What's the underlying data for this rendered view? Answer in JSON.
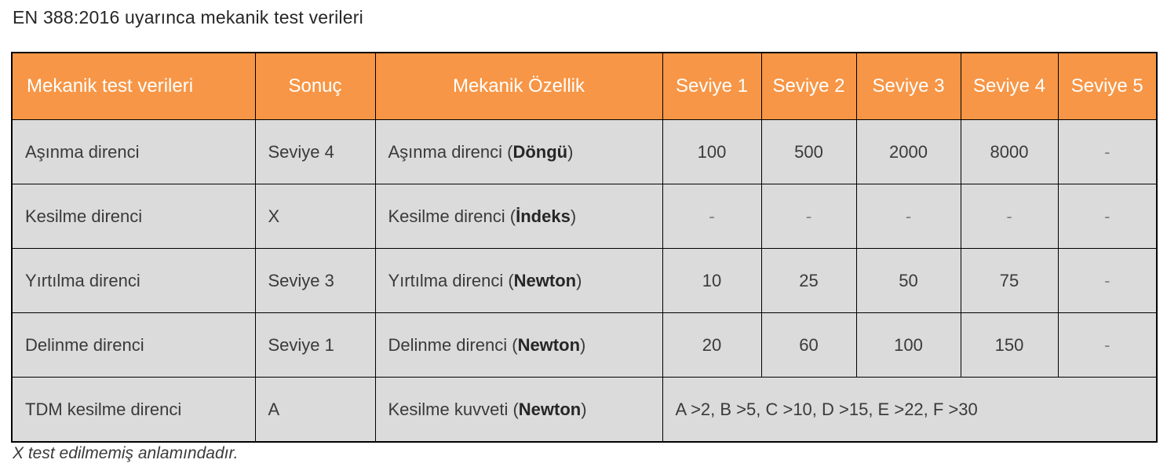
{
  "title": "EN 388:2016 uyarınca mekanik test verileri",
  "footnote": "X test edilmemiş anlamındadır.",
  "colors": {
    "header_bg": "#F79646",
    "header_text": "#FFFFFF",
    "row_bg": "#DBDBDB",
    "border": "#000000",
    "body_text": "#3A3A3A",
    "dash_text": "#7F7F7F"
  },
  "table": {
    "columns": [
      {
        "label": "Mekanik test verileri"
      },
      {
        "label": "Sonuç"
      },
      {
        "label": "Mekanik Özellik"
      },
      {
        "label": "Seviye 1"
      },
      {
        "label": "Seviye 2"
      },
      {
        "label": "Seviye 3"
      },
      {
        "label": "Seviye 4"
      },
      {
        "label": "Seviye 5"
      }
    ],
    "rows": [
      {
        "test": "Aşınma direnci",
        "result": "Seviye 4",
        "property": {
          "pre": "Aşınma direnci (",
          "bold": "Döngü",
          "post": ")"
        },
        "levels": [
          "100",
          "500",
          "2000",
          "8000",
          "-"
        ]
      },
      {
        "test": "Kesilme direnci",
        "result": "X",
        "property": {
          "pre": "Kesilme direnci (",
          "bold": "İndeks",
          "post": ")"
        },
        "levels": [
          "-",
          "-",
          "-",
          "-",
          "-"
        ]
      },
      {
        "test": "Yırtılma direnci",
        "result": "Seviye 3",
        "property": {
          "pre": "Yırtılma direnci (",
          "bold": "Newton",
          "post": ")"
        },
        "levels": [
          "10",
          "25",
          "50",
          "75",
          "-"
        ]
      },
      {
        "test": "Delinme direnci",
        "result": "Seviye 1",
        "property": {
          "pre": "Delinme direnci (",
          "bold": "Newton",
          "post": ")"
        },
        "levels": [
          "20",
          "60",
          "100",
          "150",
          "-"
        ]
      },
      {
        "test": "TDM kesilme direnci",
        "result": "A",
        "property": {
          "pre": "Kesilme kuvveti (",
          "bold": "Newton",
          "post": ")"
        },
        "levels_span": "A >2, B >5, C >10, D >15, E >22, F >30"
      }
    ]
  }
}
